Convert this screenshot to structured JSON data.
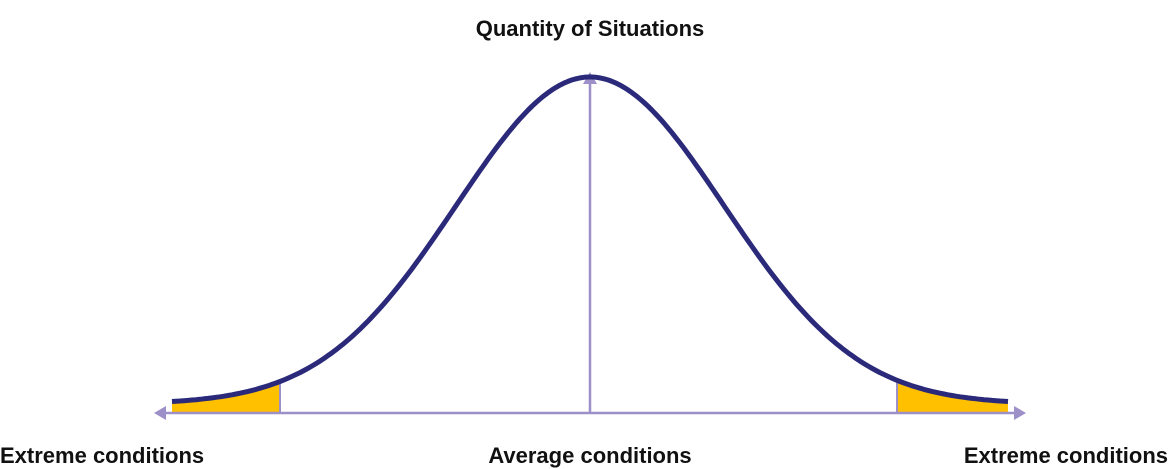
{
  "axis_title": "Quantity of Situations",
  "labels": {
    "left": "Extreme conditions",
    "center": "Average conditions",
    "right": "Extreme conditions"
  }
}
